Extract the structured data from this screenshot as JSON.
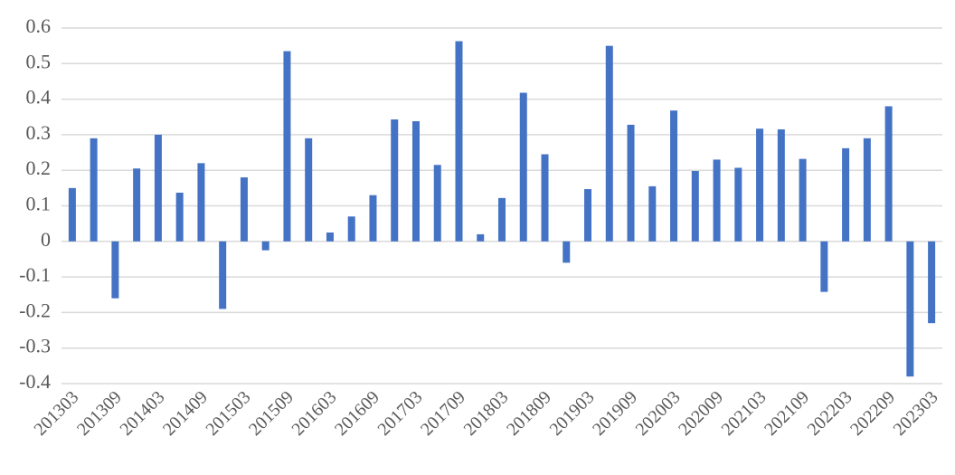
{
  "chart_data": {
    "type": "bar",
    "color": "#4472c4",
    "grid": true,
    "categories": [
      "201303",
      null,
      "201309",
      null,
      "201403",
      null,
      "201409",
      null,
      "201503",
      null,
      "201509",
      null,
      "201603",
      null,
      "201609",
      null,
      "201703",
      null,
      "201709",
      null,
      "201803",
      null,
      "201809",
      null,
      "201903",
      null,
      "201909",
      null,
      "202003",
      null,
      "202009",
      null,
      "202103",
      null,
      "202109",
      null,
      "202203",
      null,
      "202209",
      null,
      "202303"
    ],
    "values": [
      0.15,
      0.29,
      -0.16,
      0.205,
      0.3,
      0.137,
      0.22,
      -0.19,
      0.18,
      -0.025,
      0.535,
      0.29,
      0.025,
      0.07,
      0.13,
      0.343,
      0.338,
      0.215,
      0.563,
      0.02,
      0.122,
      0.418,
      0.245,
      -0.06,
      0.147,
      0.55,
      0.328,
      0.155,
      0.368,
      0.198,
      0.23,
      0.207,
      0.317,
      0.315,
      0.232,
      -0.142,
      0.262,
      0.29,
      0.38,
      -0.38,
      -0.23
    ],
    "ylim": [
      -0.4,
      0.6
    ],
    "yticks": [
      -0.4,
      -0.3,
      -0.2,
      -0.1,
      0,
      0.1,
      0.2,
      0.3,
      0.4,
      0.5,
      0.6
    ]
  }
}
